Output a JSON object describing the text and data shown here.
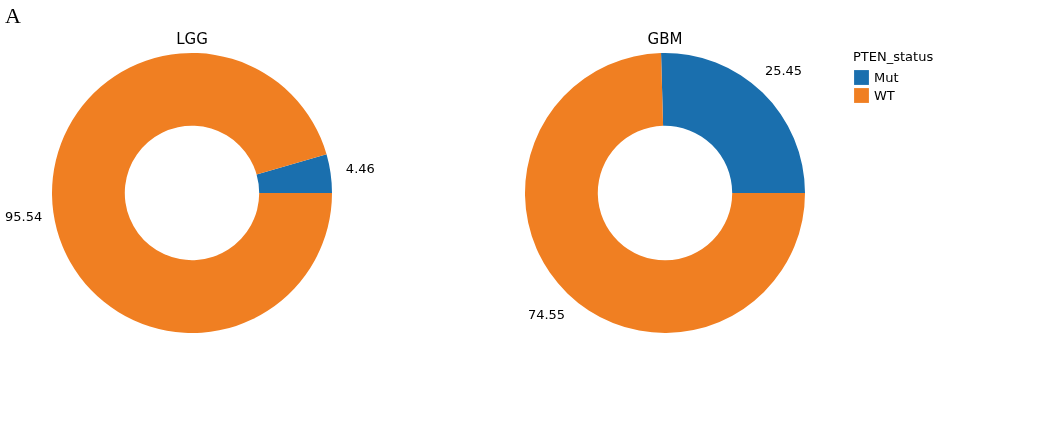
{
  "chart_data": [
    {
      "type": "donut",
      "title": "LGG",
      "categories": [
        "Mut",
        "WT"
      ],
      "values": [
        4.46,
        95.54
      ],
      "colors": [
        "#1a6fae",
        "#f07f22"
      ],
      "data_labels": true,
      "legend": "right",
      "legend_title": "PTEN_status",
      "annotations": [
        "A"
      ]
    },
    {
      "type": "donut",
      "title": "GBM",
      "categories": [
        null,
        null
      ],
      "values": [
        25.45,
        74.55
      ],
      "colors": [
        "#1a6fae",
        "#f07f22"
      ],
      "data_labels": true,
      "legend": false
    }
  ]
}
